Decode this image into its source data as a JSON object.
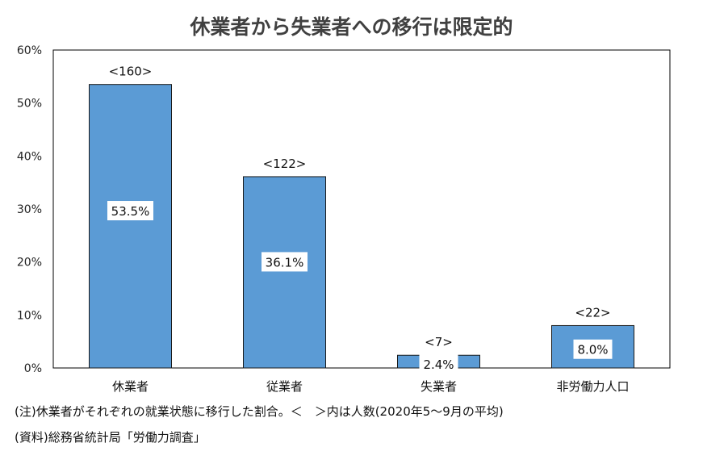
{
  "chart_data": {
    "type": "bar",
    "title": "休業者から失業者への移行は限定的",
    "xlabel": "",
    "ylabel": "",
    "categories": [
      "休業者",
      "従業者",
      "失業者",
      "非労働力人口"
    ],
    "values": [
      53.5,
      36.1,
      2.4,
      8.0
    ],
    "value_labels": [
      "53.5%",
      "36.1%",
      "2.4%",
      "8.0%"
    ],
    "count_labels": [
      "<160>",
      "<122>",
      "<7>",
      "<22>"
    ],
    "ylim": [
      0,
      60
    ],
    "yticks": [
      0,
      10,
      20,
      30,
      40,
      50,
      60
    ],
    "ytick_labels": [
      "0%",
      "10%",
      "20%",
      "30%",
      "40%",
      "50%",
      "60%"
    ],
    "bar_color": "#5B9BD5",
    "grid": false,
    "legend": "none"
  },
  "notes": [
    "(注)休業者がそれぞれの就業状態に移行した割合。＜　＞内は人数(2020年5～9月の平均)",
    "(資料)総務省統計局「労働力調査」"
  ]
}
